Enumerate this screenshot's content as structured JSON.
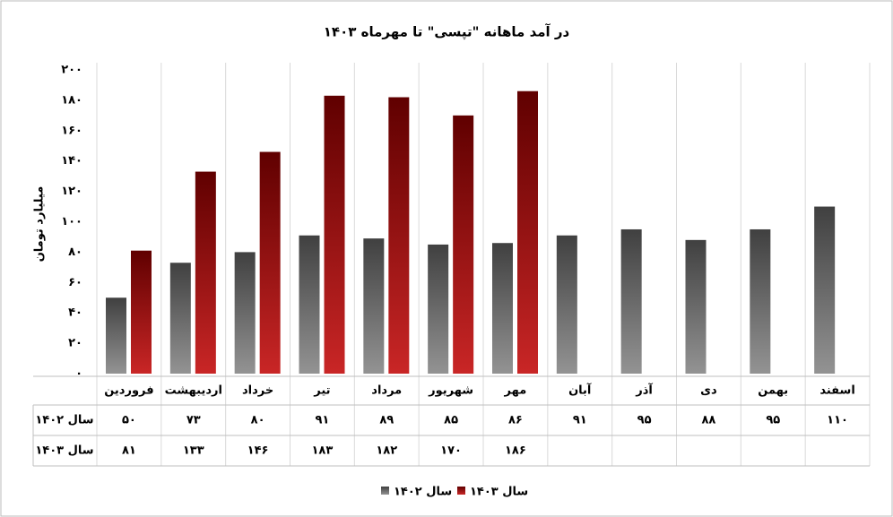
{
  "chart_data": {
    "type": "bar",
    "title": "در آمد ماهانه \"تپسی\" تا مهرماه ۱۴۰۳",
    "y_label": "میلیارد تومان",
    "categories": [
      "فروردین",
      "اردیبهشت",
      "خرداد",
      "تیر",
      "مرداد",
      "شهریور",
      "مهر",
      "آبان",
      "آذر",
      "دی",
      "بهمن",
      "اسفند"
    ],
    "series": [
      {
        "name": "سال ۱۴۰۲",
        "color": "#808080",
        "values": [
          50,
          73,
          80,
          91,
          89,
          85,
          86,
          91,
          95,
          88,
          95,
          110
        ],
        "value_labels": [
          "۵۰",
          "۷۳",
          "۸۰",
          "۹۱",
          "۸۹",
          "۸۵",
          "۸۶",
          "۹۱",
          "۹۵",
          "۸۸",
          "۹۵",
          "۱۱۰"
        ]
      },
      {
        "name": "سال ۱۴۰۳",
        "color": "#c00000",
        "values": [
          81,
          133,
          146,
          183,
          182,
          170,
          186,
          null,
          null,
          null,
          null,
          null
        ],
        "value_labels": [
          "۸۱",
          "۱۳۳",
          "۱۴۶",
          "۱۸۳",
          "۱۸۲",
          "۱۷۰",
          "۱۸۶",
          null,
          null,
          null,
          null,
          null
        ]
      }
    ],
    "ylim": [
      0,
      200
    ],
    "yticks": [
      {
        "value": 0,
        "label": "۰"
      },
      {
        "value": 20,
        "label": "۲۰"
      },
      {
        "value": 40,
        "label": "۴۰"
      },
      {
        "value": 60,
        "label": "۶۰"
      },
      {
        "value": 80,
        "label": "۸۰"
      },
      {
        "value": 100,
        "label": "۱۰۰"
      },
      {
        "value": 120,
        "label": "۱۲۰"
      },
      {
        "value": 140,
        "label": "۱۴۰"
      },
      {
        "value": 160,
        "label": "۱۶۰"
      },
      {
        "value": 180,
        "label": "۱۸۰"
      },
      {
        "value": 200,
        "label": "۲۰۰"
      }
    ],
    "grid": true
  }
}
